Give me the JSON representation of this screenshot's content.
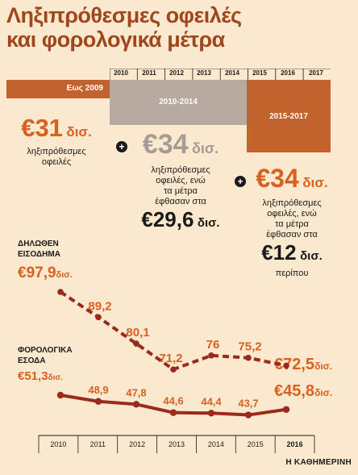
{
  "title_line1": "Ληξιπρόθεσμες οφειλές",
  "title_line2": "και φορολογικά μέτρα",
  "years": [
    "2010",
    "2011",
    "2012",
    "2013",
    "2014",
    "2015",
    "2016",
    "2017"
  ],
  "periods": {
    "p1": "Εως 2009",
    "p2": "2010-2014",
    "p3": "2015-2017"
  },
  "block1": {
    "amount": "€31",
    "unit": "δισ.",
    "text1": "ληξιπρόθεσμες",
    "text2": "οφειλές"
  },
  "block2": {
    "amount": "€34",
    "unit": "δισ.",
    "t1": "ληξιπρόθεσμες",
    "t2": "οφειλές, ενώ",
    "t3": "τα μέτρα",
    "t4": "έφθασαν στα",
    "amount2": "€29,6",
    "unit2": "δισ."
  },
  "block3": {
    "amount": "€34",
    "unit": "δισ.",
    "t1": "ληξιπρόθεσμες",
    "t2": "οφειλές, ενώ",
    "t3": "τα μέτρα",
    "t4": "έφθασαν στα",
    "amount2": "€12",
    "unit2": "δισ.",
    "t5": "περίπου"
  },
  "plus": "+",
  "labels": {
    "income_l1": "ΔΗΛΩΘΕΝ",
    "income_l2": "ΕΙΣΟΔΗΜΑ",
    "tax_l1": "ΦΟΡΟΛΟΓΙΚΑ",
    "tax_l2": "ΕΣΟΔΑ",
    "first_income": "€97,9",
    "first_income_unit": "δισ.",
    "first_tax": "€51,3",
    "first_tax_unit": "δισ.",
    "last_income": "€72,5",
    "last_income_unit": "δισ.",
    "last_tax": "€45,8",
    "last_tax_unit": "δισ."
  },
  "source": "Η ΚΑΘΗΜΕΡΙΝΗ",
  "colors": {
    "accent": "#a0461c",
    "dark_red": "#9b2a1c",
    "orange": "#d8611f",
    "grey_band": "#b8a9a1",
    "band_orange": "#c2622d"
  },
  "chart_data": {
    "type": "line",
    "x": [
      "2010",
      "2011",
      "2012",
      "2013",
      "2014",
      "2015",
      "2016"
    ],
    "series": [
      {
        "name": "ΔΗΛΩΘΕΝ ΕΙΣΟΔΗΜΑ",
        "values": [
          97.9,
          89.2,
          80.1,
          71.2,
          76,
          75.2,
          72.5
        ],
        "labels": [
          "97,9",
          "89,2",
          "80,1",
          "71,2",
          "76",
          "75,2",
          "72,5"
        ]
      },
      {
        "name": "ΦΟΡΟΛΟΓΙΚΑ ΕΣΟΔΑ",
        "values": [
          51.3,
          48.9,
          47.8,
          44.6,
          44.4,
          43.7,
          45.8
        ],
        "labels": [
          "51,3",
          "48,9",
          "47,8",
          "44,6",
          "44,4",
          "43,7",
          "45,8"
        ]
      }
    ],
    "xlabel": "",
    "ylabel": ""
  }
}
